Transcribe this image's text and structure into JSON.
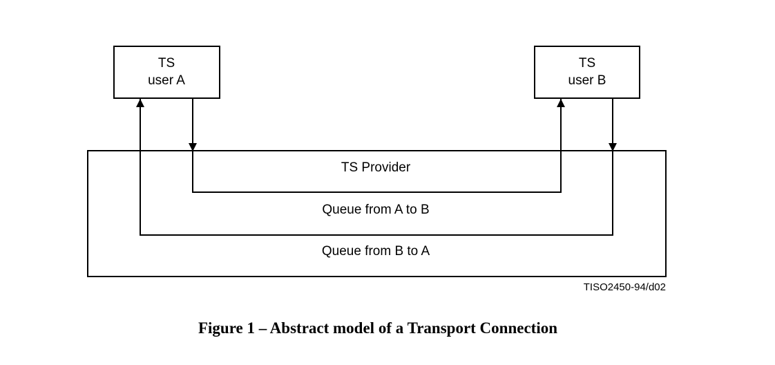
{
  "diagram": {
    "user_a": {
      "line1": "TS",
      "line2": "user A"
    },
    "user_b": {
      "line1": "TS",
      "line2": "user B"
    },
    "provider_label": "TS Provider",
    "queue_a_to_b": "Queue from A to B",
    "queue_b_to_a": "Queue from B to A",
    "figure_id": "TISO2450-94/d02"
  },
  "caption": "Figure 1 – Abstract model of a Transport Connection"
}
